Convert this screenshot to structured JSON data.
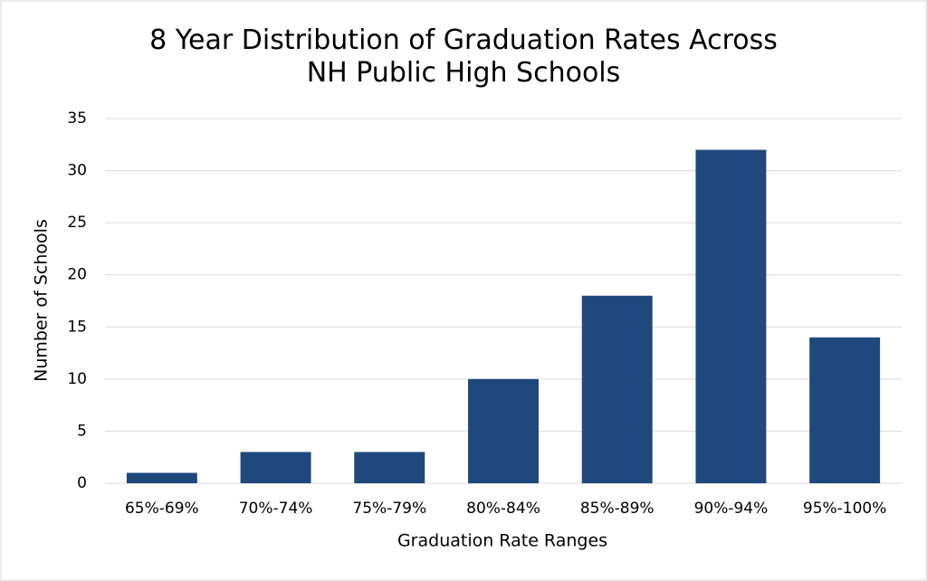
{
  "chart_data": {
    "type": "bar",
    "title": "8 Year Distribution of Graduation Rates Across NH Public High Schools",
    "x_label": "Graduation Rate Ranges",
    "y_label": "Number of Schools",
    "categories": [
      "65%-69%",
      "70%-74%",
      "75%-79%",
      "80%-84%",
      "85%-89%",
      "90%-94%",
      "95%-100%"
    ],
    "values": [
      1,
      3,
      3,
      10,
      18,
      32,
      14
    ],
    "color": "#1f497d",
    "ylim": [
      0,
      35
    ],
    "yticks": [
      0,
      5,
      10,
      15,
      20,
      25,
      30,
      35
    ],
    "grid": true
  }
}
